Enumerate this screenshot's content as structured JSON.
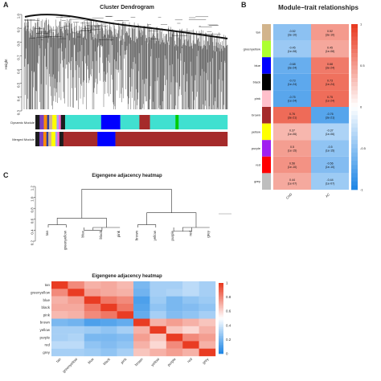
{
  "panels": {
    "a": "A",
    "b": "B",
    "c": "C"
  },
  "dendrogram": {
    "title": "Cluster Dendrogram",
    "ylabel": "Height",
    "yticks": [
      "1.0",
      "0.9",
      "0.8",
      "0.7",
      "0.6",
      "0.5",
      "0.4",
      "0.3"
    ],
    "row_labels": [
      "Dynamic Module",
      "Merged Module"
    ]
  },
  "module_trait": {
    "title": "Module−trait relationships",
    "traits": [
      "CAD",
      "AC"
    ],
    "legend_ticks": [
      "1",
      "0.5",
      "0",
      "-0.5",
      "-1"
    ]
  },
  "eigengene_dendrogram": {
    "title": "Eigengene adjacency heatmap",
    "yticks": [
      "1.2",
      "1.0",
      "0.8",
      "0.6",
      "0.4",
      "0.2"
    ],
    "order": [
      "tan",
      "greenyellow",
      "blue",
      "black",
      "pink",
      "brown",
      "yellow",
      "purple",
      "red",
      "grey"
    ]
  },
  "heatmap": {
    "title": "Eigengene adjacency heatmap",
    "legend_ticks": [
      "1",
      "0.8",
      "0.6",
      "0.4",
      "0.2",
      "0"
    ]
  },
  "chart_data": [
    {
      "type": "heatmap",
      "title": "Module−trait relationships",
      "rows": [
        "tan",
        "greenyellow",
        "blue",
        "black",
        "pink",
        "brown",
        "yellow",
        "purple",
        "red",
        "grey"
      ],
      "row_colors": [
        "#d2b48c",
        "#adff2f",
        "#0000ff",
        "#000000",
        "#ffc0cb",
        "#a52a2a",
        "#ffff00",
        "#a020f0",
        "#ff0000",
        "#bebebe"
      ],
      "columns": [
        "CAD",
        "AC"
      ],
      "correlations": [
        [
          -0.52,
          0.52
        ],
        [
          -0.45,
          0.45
        ],
        [
          -0.68,
          0.68
        ],
        [
          -0.73,
          0.73
        ],
        [
          -0.75,
          0.75
        ],
        [
          0.76,
          -0.76
        ],
        [
          0.37,
          -0.37
        ],
        [
          0.5,
          -0.5
        ],
        [
          0.56,
          -0.56
        ],
        [
          0.44,
          -0.44
        ]
      ],
      "pvalues": [
        [
          "(3e-10)",
          "(3e-10)"
        ],
        [
          "(1e-08)",
          "(1e-08)"
        ],
        [
          "(3e-24)",
          "(3e-24)"
        ],
        [
          "(1e-24)",
          "(1e-24)"
        ],
        [
          "(1e-24)",
          "(1e-24)"
        ],
        [
          "(3e-21)",
          "(3e-21)"
        ],
        [
          "(1e-06)",
          "(1e-06)"
        ],
        [
          "(1e-15)",
          "(1e-15)"
        ],
        [
          "(1e-10)",
          "(1e-10)"
        ],
        [
          "(1e-07)",
          "(1e-07)"
        ]
      ],
      "color_range": [
        -1,
        1
      ]
    },
    {
      "type": "heatmap",
      "title": "Eigengene adjacency heatmap",
      "rows": [
        "tan",
        "greenyellow",
        "blue",
        "black",
        "pink",
        "brown",
        "yellow",
        "purple",
        "red",
        "grey"
      ],
      "columns": [
        "tan",
        "greenyellow",
        "blue",
        "black",
        "pink",
        "brown",
        "yellow",
        "purple",
        "red",
        "grey"
      ],
      "values": [
        [
          1.0,
          0.8,
          0.7,
          0.72,
          0.68,
          0.2,
          0.3,
          0.3,
          0.35,
          0.3
        ],
        [
          0.8,
          1.0,
          0.75,
          0.72,
          0.7,
          0.18,
          0.3,
          0.32,
          0.35,
          0.3
        ],
        [
          0.7,
          0.75,
          1.0,
          0.85,
          0.8,
          0.1,
          0.28,
          0.2,
          0.25,
          0.28
        ],
        [
          0.72,
          0.72,
          0.85,
          1.0,
          0.85,
          0.12,
          0.25,
          0.2,
          0.22,
          0.25
        ],
        [
          0.68,
          0.7,
          0.8,
          0.85,
          1.0,
          0.15,
          0.3,
          0.22,
          0.25,
          0.3
        ],
        [
          0.2,
          0.18,
          0.1,
          0.12,
          0.15,
          1.0,
          0.7,
          0.75,
          0.7,
          0.65
        ],
        [
          0.3,
          0.3,
          0.28,
          0.25,
          0.3,
          0.7,
          1.0,
          0.65,
          0.6,
          0.7
        ],
        [
          0.3,
          0.32,
          0.2,
          0.2,
          0.22,
          0.75,
          0.65,
          1.0,
          0.8,
          0.75
        ],
        [
          0.35,
          0.35,
          0.25,
          0.22,
          0.25,
          0.7,
          0.6,
          0.8,
          1.0,
          0.7
        ],
        [
          0.3,
          0.3,
          0.28,
          0.25,
          0.3,
          0.65,
          0.7,
          0.75,
          0.7,
          1.0
        ]
      ],
      "color_range": [
        0,
        1
      ]
    }
  ]
}
